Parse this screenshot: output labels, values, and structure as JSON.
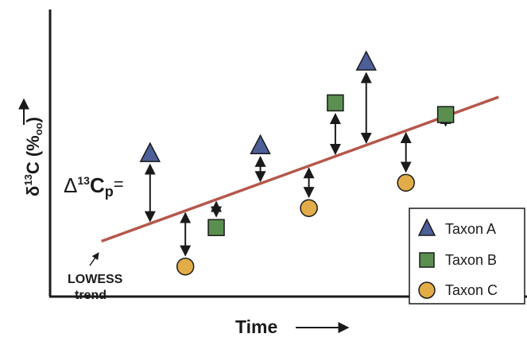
{
  "axes": {
    "x_label": "Time",
    "y_label_symbol": "δ",
    "y_label_sup": "13",
    "y_label_main": "C (%",
    "y_label_sub": "oo",
    "y_label_close": ")"
  },
  "annotations": {
    "delta_symbol": "Δ",
    "delta_sup": "13",
    "delta_main": "C",
    "delta_sub": "p",
    "delta_eq": "=",
    "trend_line1": "LOWESS",
    "trend_line2": "trend"
  },
  "legend": [
    {
      "label": "Taxon A",
      "shape": "triangle",
      "fill": "#4d5f99"
    },
    {
      "label": "Taxon B",
      "shape": "square",
      "fill": "#5a8f50"
    },
    {
      "label": "Taxon C",
      "shape": "circle",
      "fill": "#e2ac48"
    }
  ],
  "colors": {
    "trend": "#b5574b",
    "taxon_a": "#4d5f99",
    "taxon_b": "#5a8f50",
    "taxon_c": "#e2ac48",
    "stroke": "#1a1a1a"
  },
  "chart_data": {
    "type": "scatter",
    "note_axes": "no numeric ticks shown; values are relative units on 0-100 scale",
    "trend": {
      "x0": 5,
      "y0": 17,
      "x1": 95,
      "y1": 91
    },
    "points": [
      {
        "taxon": "Taxon A",
        "x": 16,
        "y": 62
      },
      {
        "taxon": "Taxon C",
        "x": 24,
        "y": 4
      },
      {
        "taxon": "Taxon B",
        "x": 31,
        "y": 24
      },
      {
        "taxon": "Taxon A",
        "x": 41,
        "y": 66
      },
      {
        "taxon": "Taxon C",
        "x": 52,
        "y": 34
      },
      {
        "taxon": "Taxon B",
        "x": 58,
        "y": 88
      },
      {
        "taxon": "Taxon A",
        "x": 65,
        "y": 109
      },
      {
        "taxon": "Taxon C",
        "x": 74,
        "y": 47
      },
      {
        "taxon": "Taxon B",
        "x": 83,
        "y": 82
      }
    ]
  }
}
